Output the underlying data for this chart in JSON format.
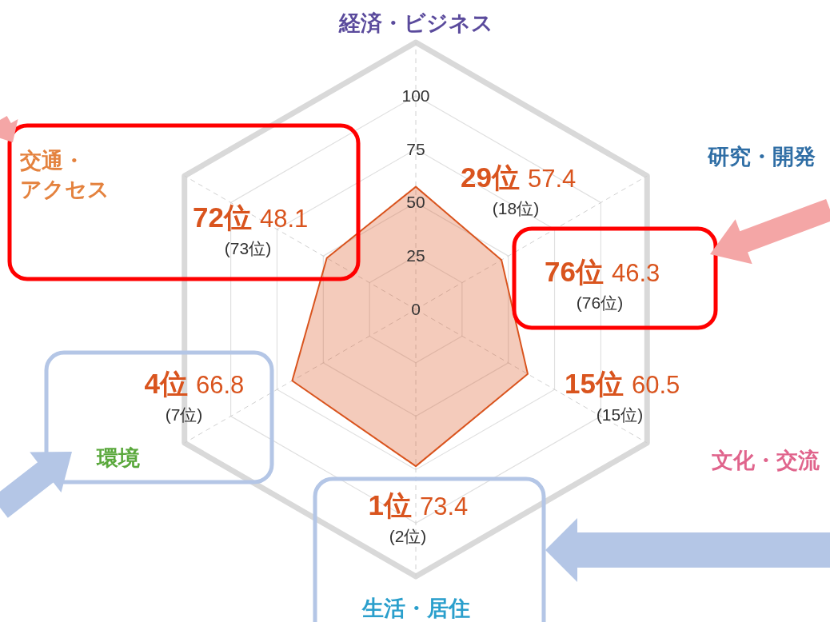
{
  "chart_data": {
    "type": "radar",
    "categories": [
      "経済・ビジネス",
      "研究・開発",
      "文化・交流",
      "生活・居住",
      "環境",
      "交通・アクセス"
    ],
    "colors": [
      "#5a4a9c",
      "#2f6ea5",
      "#e0648c",
      "#2a9fcc",
      "#5aa83c",
      "#e4823e"
    ],
    "series": [
      {
        "color": "#d9541e",
        "values": [
          57.4,
          46.3,
          60.5,
          73.4,
          66.8,
          48.1
        ]
      }
    ],
    "ylim": [
      0,
      125
    ],
    "yticks": [
      0,
      25,
      50,
      75,
      100
    ],
    "grid": true,
    "annotations": [
      "29位",
      "57.4",
      "(18位)",
      "76位",
      "46.3",
      "(76位)",
      "15位",
      "60.5",
      "(15位)",
      "1位",
      "73.4",
      "(2位)",
      "4位",
      "66.8",
      "(7位)",
      "72位",
      "48.1",
      "(73位)"
    ]
  }
}
